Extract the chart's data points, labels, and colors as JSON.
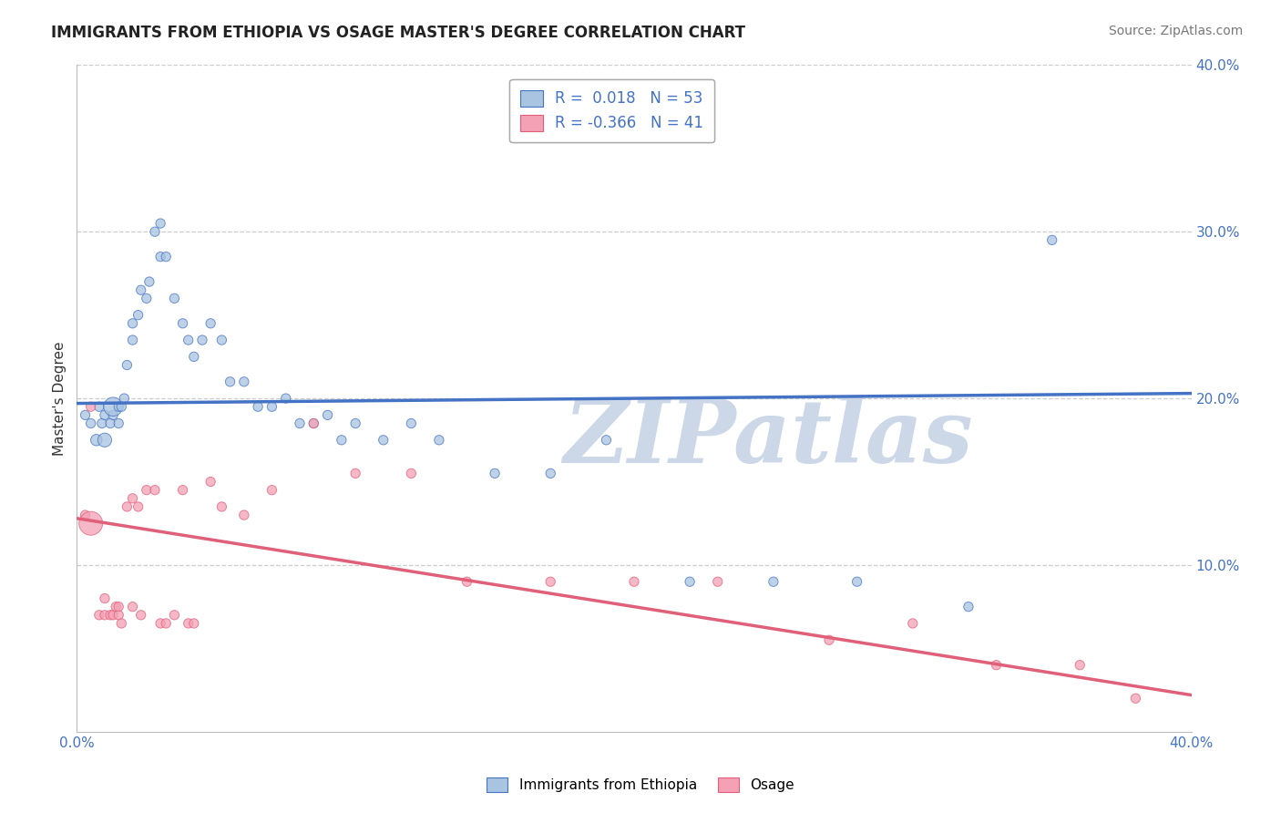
{
  "title": "IMMIGRANTS FROM ETHIOPIA VS OSAGE MASTER'S DEGREE CORRELATION CHART",
  "source": "Source: ZipAtlas.com",
  "ylabel": "Master's Degree",
  "xlim": [
    0.0,
    0.4
  ],
  "ylim": [
    0.0,
    0.4
  ],
  "blue_R": 0.018,
  "blue_N": 53,
  "pink_R": -0.366,
  "pink_N": 41,
  "blue_color": "#a8c4e0",
  "pink_color": "#f4a0b5",
  "blue_line_color": "#4472c4",
  "pink_line_color": "#e0607a",
  "watermark": "ZIPatlas",
  "watermark_color": "#ccd8e8",
  "blue_scatter_x": [
    0.003,
    0.005,
    0.007,
    0.008,
    0.009,
    0.01,
    0.01,
    0.012,
    0.013,
    0.013,
    0.015,
    0.015,
    0.016,
    0.017,
    0.018,
    0.02,
    0.02,
    0.022,
    0.023,
    0.025,
    0.026,
    0.028,
    0.03,
    0.03,
    0.032,
    0.035,
    0.038,
    0.04,
    0.042,
    0.045,
    0.048,
    0.052,
    0.055,
    0.06,
    0.065,
    0.07,
    0.075,
    0.08,
    0.085,
    0.09,
    0.095,
    0.1,
    0.11,
    0.12,
    0.13,
    0.15,
    0.17,
    0.19,
    0.22,
    0.25,
    0.28,
    0.32,
    0.35
  ],
  "blue_scatter_y": [
    0.19,
    0.185,
    0.175,
    0.195,
    0.185,
    0.19,
    0.175,
    0.185,
    0.19,
    0.195,
    0.195,
    0.185,
    0.195,
    0.2,
    0.22,
    0.245,
    0.235,
    0.25,
    0.265,
    0.26,
    0.27,
    0.3,
    0.285,
    0.305,
    0.285,
    0.26,
    0.245,
    0.235,
    0.225,
    0.235,
    0.245,
    0.235,
    0.21,
    0.21,
    0.195,
    0.195,
    0.2,
    0.185,
    0.185,
    0.19,
    0.175,
    0.185,
    0.175,
    0.185,
    0.175,
    0.155,
    0.155,
    0.175,
    0.09,
    0.09,
    0.09,
    0.075,
    0.295
  ],
  "blue_scatter_size": [
    55,
    55,
    80,
    55,
    55,
    55,
    120,
    55,
    55,
    220,
    55,
    55,
    55,
    55,
    55,
    55,
    55,
    55,
    55,
    55,
    55,
    55,
    55,
    55,
    55,
    55,
    55,
    55,
    55,
    55,
    55,
    55,
    55,
    55,
    55,
    55,
    55,
    55,
    55,
    55,
    55,
    55,
    55,
    55,
    55,
    55,
    55,
    55,
    55,
    55,
    55,
    55,
    55
  ],
  "pink_scatter_x": [
    0.003,
    0.005,
    0.008,
    0.01,
    0.01,
    0.012,
    0.013,
    0.014,
    0.015,
    0.015,
    0.016,
    0.018,
    0.02,
    0.02,
    0.022,
    0.023,
    0.025,
    0.028,
    0.03,
    0.032,
    0.035,
    0.038,
    0.04,
    0.042,
    0.048,
    0.052,
    0.06,
    0.07,
    0.085,
    0.1,
    0.12,
    0.14,
    0.17,
    0.2,
    0.23,
    0.27,
    0.3,
    0.33,
    0.36,
    0.38,
    0.005
  ],
  "pink_scatter_y": [
    0.13,
    0.125,
    0.07,
    0.07,
    0.08,
    0.07,
    0.07,
    0.075,
    0.07,
    0.075,
    0.065,
    0.135,
    0.075,
    0.14,
    0.135,
    0.07,
    0.145,
    0.145,
    0.065,
    0.065,
    0.07,
    0.145,
    0.065,
    0.065,
    0.15,
    0.135,
    0.13,
    0.145,
    0.185,
    0.155,
    0.155,
    0.09,
    0.09,
    0.09,
    0.09,
    0.055,
    0.065,
    0.04,
    0.04,
    0.02,
    0.195
  ],
  "pink_scatter_size": [
    55,
    350,
    55,
    55,
    55,
    55,
    55,
    55,
    55,
    55,
    55,
    55,
    55,
    55,
    55,
    55,
    55,
    55,
    55,
    55,
    55,
    55,
    55,
    55,
    55,
    55,
    55,
    55,
    55,
    55,
    55,
    55,
    55,
    55,
    55,
    55,
    55,
    55,
    55,
    55,
    55
  ],
  "blue_line_x": [
    0.0,
    0.4
  ],
  "blue_line_y": [
    0.197,
    0.203
  ],
  "pink_line_x": [
    0.0,
    0.4
  ],
  "pink_line_y": [
    0.128,
    0.022
  ],
  "legend_blue_label": "R =  0.018   N = 53",
  "legend_pink_label": "R = -0.366   N = 41",
  "background_color": "#ffffff",
  "grid_color": "#cccccc"
}
